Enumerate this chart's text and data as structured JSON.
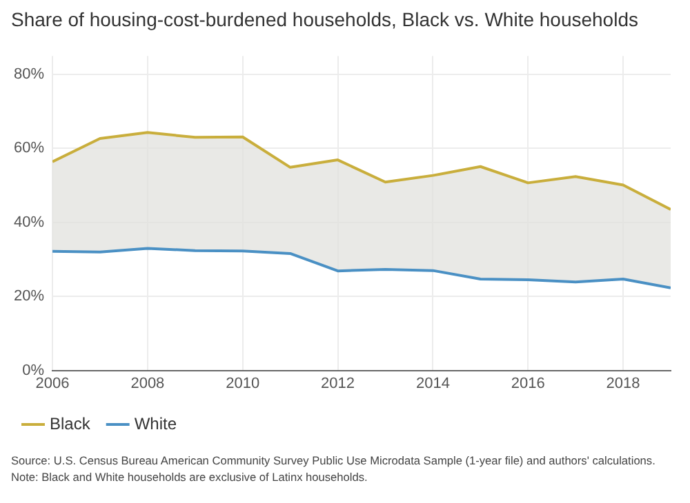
{
  "chart_data": {
    "type": "line",
    "title": "Share of housing-cost-burdened households, Black vs. White households",
    "x": [
      2006,
      2007,
      2008,
      2009,
      2010,
      2011,
      2012,
      2013,
      2014,
      2015,
      2016,
      2017,
      2018,
      2019
    ],
    "series": [
      {
        "name": "Black",
        "color": "#c9ae3c",
        "values": [
          56.4,
          62.7,
          64.3,
          63.0,
          63.1,
          54.9,
          56.9,
          50.9,
          52.7,
          55.1,
          50.7,
          52.4,
          50.1,
          43.5
        ],
        "lower": [
          32.2,
          32.0,
          33.0,
          32.4,
          32.3,
          31.6,
          26.9,
          27.3,
          27.0,
          24.7,
          24.5,
          23.9,
          24.7,
          22.3
        ],
        "upper": [
          56.4,
          62.7,
          64.3,
          63.0,
          63.1,
          54.9,
          56.9,
          50.9,
          52.7,
          55.1,
          50.7,
          52.4,
          50.1,
          43.5
        ]
      },
      {
        "name": "White",
        "color": "#4a90c4",
        "values": [
          32.2,
          32.0,
          33.0,
          32.4,
          32.3,
          31.6,
          26.9,
          27.3,
          27.0,
          24.7,
          24.5,
          23.9,
          24.7,
          22.3
        ]
      }
    ],
    "xlim": [
      2006,
      2019
    ],
    "xticks": [
      2006,
      2008,
      2010,
      2012,
      2014,
      2016,
      2018
    ],
    "ylim": [
      0,
      85
    ],
    "yticks": [
      {
        "value": 0,
        "label": "0%"
      },
      {
        "value": 20,
        "label": "20%"
      },
      {
        "value": 40,
        "label": "40%"
      },
      {
        "value": 60,
        "label": "60%"
      },
      {
        "value": 80,
        "label": "80%"
      }
    ],
    "grid": true,
    "legend": "bottom left",
    "marker": "none",
    "line_style": "solid",
    "annotations": [
      "Source: U.S. Census Bureau American Community Survey Public Use Microdata Sample (1-year file) and authors' calculations.",
      "Note: Black and White households are exclusive of Latinx households."
    ]
  }
}
